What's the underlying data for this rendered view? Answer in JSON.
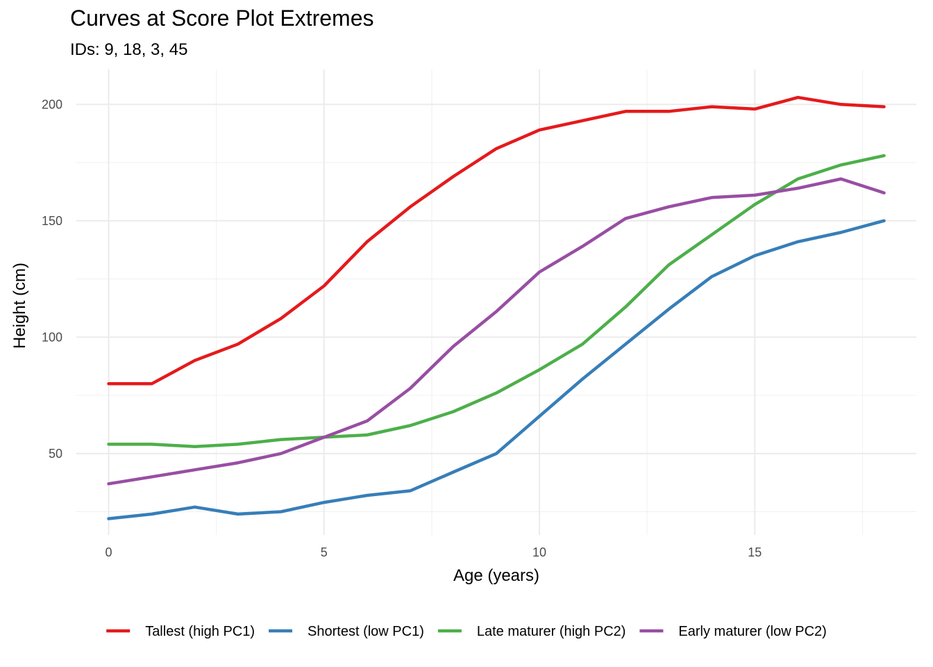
{
  "chart_data": {
    "type": "line",
    "title": "Curves at Score Plot Extremes",
    "subtitle": "IDs: 9, 18, 3, 45",
    "xlabel": "Age (years)",
    "ylabel": "Height (cm)",
    "xlim": [
      -0.75,
      18.75
    ],
    "ylim": [
      15,
      215
    ],
    "xticks": [
      0,
      5,
      10,
      15
    ],
    "yticks": [
      50,
      100,
      150,
      200
    ],
    "legend_position": "bottom",
    "x": [
      0,
      1,
      2,
      3,
      4,
      5,
      6,
      7,
      8,
      9,
      10,
      11,
      12,
      13,
      14,
      15,
      16,
      17,
      18
    ],
    "series": [
      {
        "name": "Tallest (high PC1)",
        "color": "#E41A1C",
        "values": [
          80,
          80,
          90,
          97,
          108,
          122,
          141,
          156,
          169,
          181,
          189,
          193,
          197,
          197,
          199,
          198,
          203,
          200,
          199
        ]
      },
      {
        "name": "Shortest (low PC1)",
        "color": "#377EB8",
        "values": [
          22,
          24,
          27,
          24,
          25,
          29,
          32,
          34,
          42,
          50,
          66,
          82,
          97,
          112,
          126,
          135,
          141,
          145,
          150
        ]
      },
      {
        "name": "Late maturer (high PC2)",
        "color": "#4DAF4A",
        "values": [
          54,
          54,
          53,
          54,
          56,
          57,
          58,
          62,
          68,
          76,
          86,
          97,
          113,
          131,
          144,
          157,
          168,
          174,
          178
        ]
      },
      {
        "name": "Early maturer (low PC2)",
        "color": "#984EA3",
        "values": [
          37,
          40,
          43,
          46,
          50,
          57,
          64,
          78,
          96,
          111,
          128,
          139,
          151,
          156,
          160,
          161,
          164,
          168,
          162
        ]
      }
    ]
  }
}
